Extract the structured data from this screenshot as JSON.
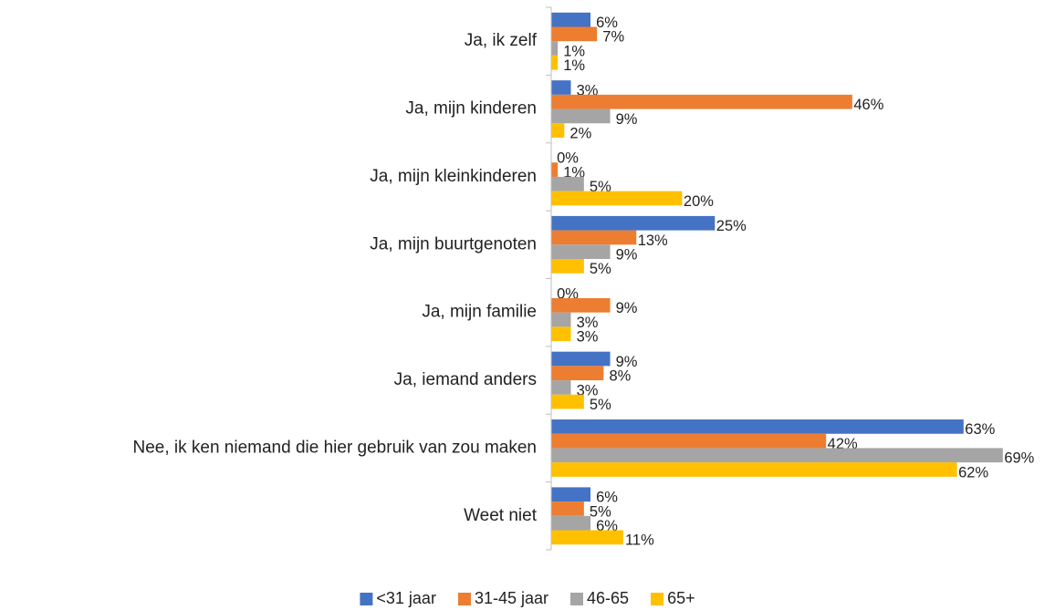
{
  "chart_data": {
    "type": "bar",
    "orientation": "horizontal",
    "categories": [
      "Ja, ik zelf",
      "Ja, mijn kinderen",
      "Ja, mijn kleinkinderen",
      "Ja, mijn buurtgenoten",
      "Ja, mijn familie",
      "Ja, iemand anders",
      "Nee, ik ken niemand die hier gebruik van zou maken",
      "Weet niet"
    ],
    "series": [
      {
        "name": "<31 jaar",
        "color": "#4472c4",
        "values": [
          6,
          3,
          0,
          25,
          0,
          9,
          63,
          6
        ],
        "value_labels": [
          "6%",
          "3%",
          "0%",
          "25%",
          "0%",
          "9%",
          "63%",
          "6%"
        ]
      },
      {
        "name": "31-45 jaar",
        "color": "#ed7d31",
        "values": [
          7,
          46,
          1,
          13,
          9,
          8,
          42,
          5
        ],
        "value_labels": [
          "7%",
          "46%",
          "1%",
          "13%",
          "9%",
          "8%",
          "42%",
          "5%"
        ]
      },
      {
        "name": "46-65",
        "color": "#a5a5a5",
        "values": [
          1,
          9,
          5,
          9,
          3,
          3,
          69,
          6
        ],
        "value_labels": [
          "1%",
          "9%",
          "5%",
          "9%",
          "3%",
          "3%",
          "69%",
          "6%"
        ]
      },
      {
        "name": "65+",
        "color": "#ffc000",
        "values": [
          1,
          2,
          20,
          5,
          3,
          5,
          62,
          11
        ],
        "value_labels": [
          "1%",
          "2%",
          "20%",
          "5%",
          "3%",
          "5%",
          "62%",
          "11%"
        ]
      }
    ],
    "xlim": [
      0,
      70
    ],
    "legend": "bottom"
  }
}
